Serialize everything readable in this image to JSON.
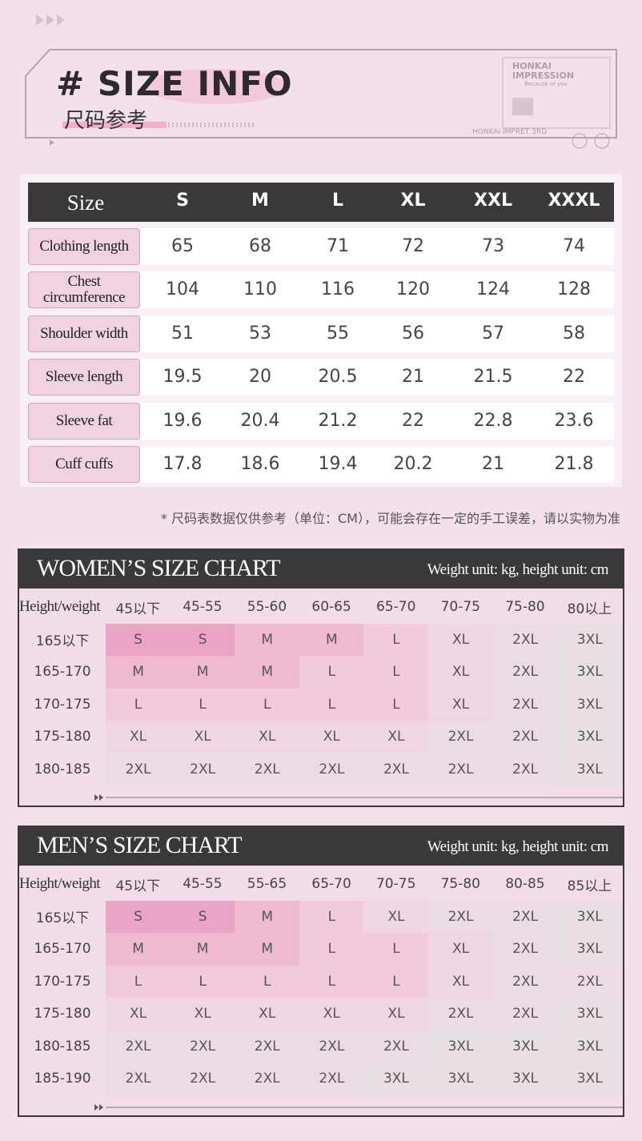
{
  "header": {
    "title": "# SIZE INFO",
    "subtitle": "尺码参考",
    "logo": [
      "HONKAI",
      "IMPRESSION",
      "Because of you",
      "HONKAI IMPRET 3RD"
    ]
  },
  "size_table": {
    "header": [
      "Size",
      "S",
      "M",
      "L",
      "XL",
      "XXL",
      "XXXL"
    ],
    "rows": [
      {
        "label": "Clothing length",
        "values": [
          65,
          68,
          71,
          72,
          73,
          74
        ]
      },
      {
        "label": "Chest circumference",
        "values": [
          104,
          110,
          116,
          120,
          124,
          128
        ]
      },
      {
        "label": "Shoulder width",
        "values": [
          51,
          53,
          55,
          56,
          57,
          58
        ]
      },
      {
        "label": "Sleeve length",
        "values": [
          19.5,
          20,
          20.5,
          21,
          21.5,
          22
        ]
      },
      {
        "label": "Sleeve fat",
        "values": [
          19.6,
          20.4,
          21.2,
          22,
          22.8,
          23.6
        ]
      },
      {
        "label": "Cuff cuffs",
        "values": [
          17.8,
          18.6,
          19.4,
          20.2,
          21,
          21.8
        ]
      }
    ]
  },
  "note": "* 尺码表数据仅供参考（单位：CM），可能会存在一定的手工误差，请以实物为准",
  "charts": [
    {
      "title": "WOMEN’S SIZE CHART",
      "unit": "Weight unit: kg, height unit: cm",
      "corner": "Height/weight",
      "columns": [
        "45以下",
        "45-55",
        "55-60",
        "60-65",
        "65-70",
        "70-75",
        "75-80",
        "80以上"
      ],
      "rows": [
        {
          "height": "165以下",
          "sizes": [
            "S",
            "S",
            "M",
            "M",
            "L",
            "XL",
            "2XL",
            "3XL"
          ]
        },
        {
          "height": "165-170",
          "sizes": [
            "M",
            "M",
            "M",
            "L",
            "L",
            "XL",
            "2XL",
            "3XL"
          ]
        },
        {
          "height": "170-175",
          "sizes": [
            "L",
            "L",
            "L",
            "L",
            "L",
            "XL",
            "2XL",
            "3XL"
          ]
        },
        {
          "height": "175-180",
          "sizes": [
            "XL",
            "XL",
            "XL",
            "XL",
            "XL",
            "2XL",
            "2XL",
            "3XL"
          ]
        },
        {
          "height": "180-185",
          "sizes": [
            "2XL",
            "2XL",
            "2XL",
            "2XL",
            "2XL",
            "2XL",
            "2XL",
            "3XL"
          ]
        }
      ]
    },
    {
      "title": "MEN’S SIZE CHART",
      "unit": "Weight unit: kg, height unit: cm",
      "corner": "Height/weight",
      "columns": [
        "45以下",
        "45-55",
        "55-65",
        "65-70",
        "70-75",
        "75-80",
        "80-85",
        "85以上"
      ],
      "rows": [
        {
          "height": "165以下",
          "sizes": [
            "S",
            "S",
            "M",
            "L",
            "XL",
            "2XL",
            "2XL",
            "3XL"
          ]
        },
        {
          "height": "165-170",
          "sizes": [
            "M",
            "M",
            "M",
            "L",
            "L",
            "XL",
            "2XL",
            "3XL"
          ]
        },
        {
          "height": "170-175",
          "sizes": [
            "L",
            "L",
            "L",
            "L",
            "L",
            "XL",
            "2XL",
            "2XL"
          ]
        },
        {
          "height": "175-180",
          "sizes": [
            "XL",
            "XL",
            "XL",
            "XL",
            "XL",
            "2XL",
            "2XL",
            "3XL"
          ]
        },
        {
          "height": "180-185",
          "sizes": [
            "2XL",
            "2XL",
            "2XL",
            "2XL",
            "2XL",
            "3XL",
            "3XL",
            "3XL"
          ]
        },
        {
          "height": "185-190",
          "sizes": [
            "2XL",
            "2XL",
            "2XL",
            "2XL",
            "3XL",
            "3XL",
            "3XL",
            "3XL"
          ]
        }
      ]
    }
  ]
}
